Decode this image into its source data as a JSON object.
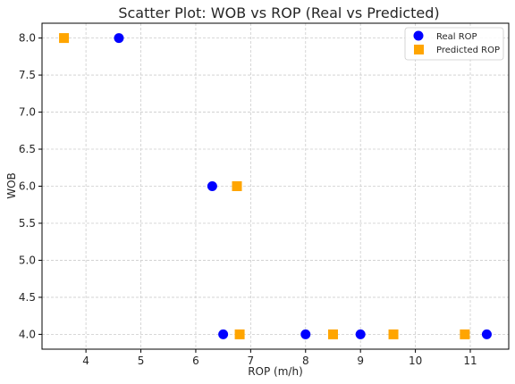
{
  "chart_data": {
    "type": "scatter",
    "title": "Scatter Plot: WOB vs ROP (Real vs Predicted)",
    "xlabel": "ROP (m/h)",
    "ylabel": "WOB",
    "xlim": [
      3.2,
      11.7
    ],
    "ylim": [
      3.8,
      8.2
    ],
    "xticks": [
      4,
      5,
      6,
      7,
      8,
      9,
      10,
      11
    ],
    "yticks": [
      4.0,
      4.5,
      5.0,
      5.5,
      6.0,
      6.5,
      7.0,
      7.5,
      8.0
    ],
    "grid": true,
    "legend_position": "top-right",
    "series": [
      {
        "name": "Real ROP",
        "marker": "circle",
        "color": "#0000ff",
        "points": [
          {
            "x": 4.6,
            "y": 8.0
          },
          {
            "x": 6.3,
            "y": 6.0
          },
          {
            "x": 6.5,
            "y": 4.0
          },
          {
            "x": 8.0,
            "y": 4.0
          },
          {
            "x": 9.0,
            "y": 4.0
          },
          {
            "x": 11.3,
            "y": 4.0
          }
        ]
      },
      {
        "name": "Predicted ROP",
        "marker": "square",
        "color": "#ffa500",
        "points": [
          {
            "x": 3.6,
            "y": 8.0
          },
          {
            "x": 6.75,
            "y": 6.0
          },
          {
            "x": 6.8,
            "y": 4.0
          },
          {
            "x": 8.5,
            "y": 4.0
          },
          {
            "x": 9.6,
            "y": 4.0
          },
          {
            "x": 10.9,
            "y": 4.0
          }
        ]
      }
    ]
  }
}
